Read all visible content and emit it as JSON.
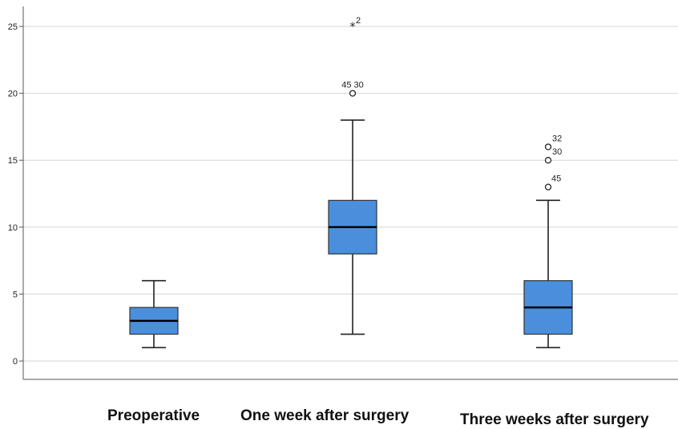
{
  "chart_data": {
    "type": "boxplot",
    "categories": [
      "Preoperative",
      "One week after surgery",
      "Three weeks after surgery"
    ],
    "y_ticks": [
      "0",
      "5",
      "10",
      "15",
      "20",
      "25"
    ],
    "ylim": [
      -1,
      26
    ],
    "grid": true,
    "box_color": "#4a8fdc",
    "boxes": [
      {
        "category": "Preoperative",
        "min": 1,
        "q1": 2,
        "median": 3,
        "q3": 4,
        "max": 6,
        "outliers": []
      },
      {
        "category": "One week after surgery",
        "min": 2,
        "q1": 8,
        "median": 10,
        "q3": 12,
        "max": 18,
        "outliers": [
          {
            "value": 20,
            "label": "45 30",
            "marker": "circle"
          },
          {
            "value": 25,
            "label": "2",
            "marker": "star"
          }
        ]
      },
      {
        "category": "Three weeks after surgery",
        "min": 1,
        "q1": 2,
        "median": 4,
        "q3": 6,
        "max": 12,
        "outliers": [
          {
            "value": 13,
            "label": "45",
            "marker": "circle"
          },
          {
            "value": 15,
            "label": "30",
            "marker": "circle"
          },
          {
            "value": 16,
            "label": "32",
            "marker": "circle"
          }
        ]
      }
    ]
  }
}
